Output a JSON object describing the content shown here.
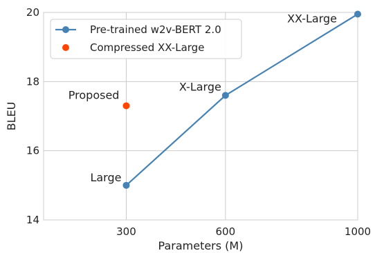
{
  "chart_data": {
    "type": "line",
    "xlabel": "Parameters (M)",
    "ylabel": "BLEU",
    "xlim": [
      50,
      1000
    ],
    "ylim": [
      14,
      20
    ],
    "xticks": [
      300,
      600,
      1000
    ],
    "yticks": [
      14,
      16,
      18,
      20
    ],
    "grid": true,
    "legend_position": "top-left",
    "series": [
      {
        "name": "Pre-trained w2v-BERT 2.0",
        "kind": "line-marker",
        "color": "#4682b4",
        "points": [
          {
            "x": 300,
            "y": 15.0,
            "label": "Large"
          },
          {
            "x": 600,
            "y": 17.6,
            "label": "X-Large"
          },
          {
            "x": 1000,
            "y": 19.95,
            "label": "XX-Large"
          }
        ]
      },
      {
        "name": "Compressed XX-Large",
        "kind": "scatter",
        "color": "#ff4500",
        "points": [
          {
            "x": 300,
            "y": 17.3,
            "label": "Proposed"
          }
        ]
      }
    ]
  }
}
